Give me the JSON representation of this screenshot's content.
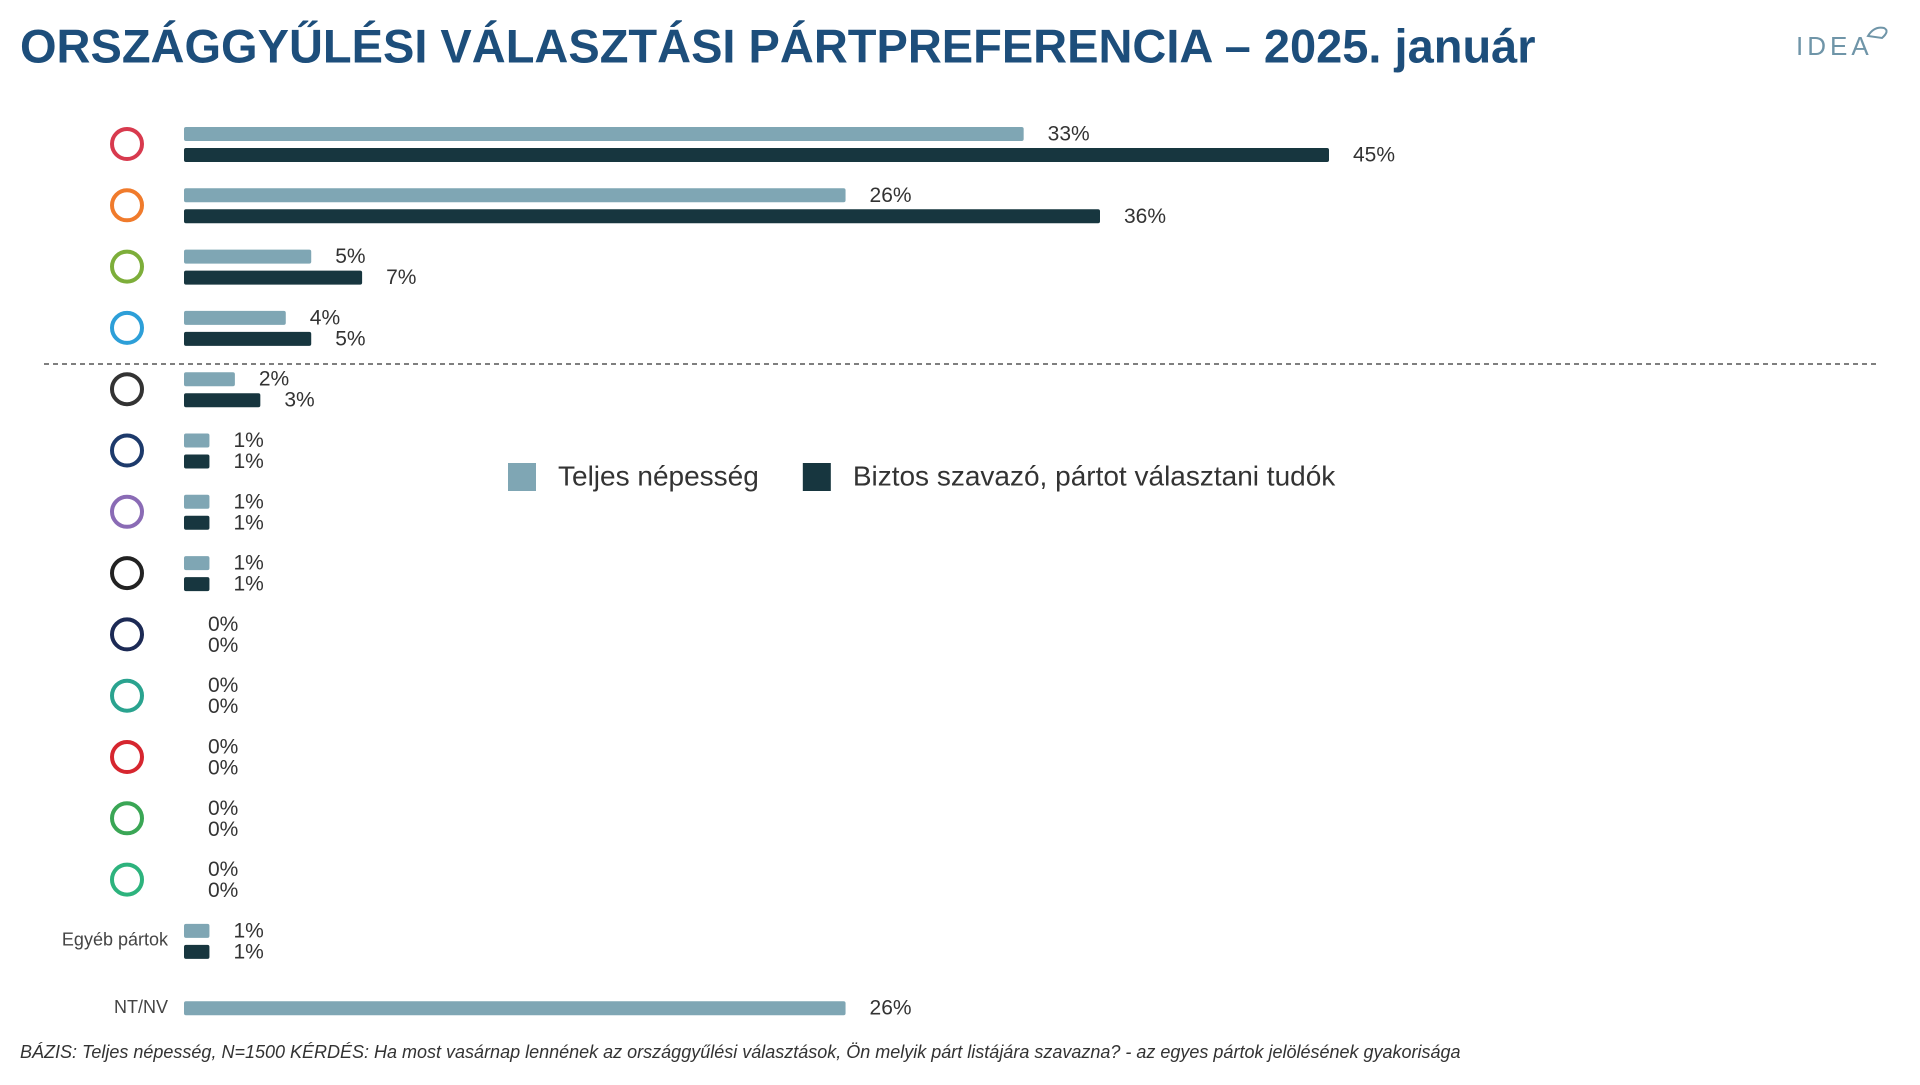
{
  "chart_data": {
    "type": "bar",
    "orientation": "horizontal",
    "title": "ORSZÁGGYŰLÉSI VÁLASZTÁSI PÁRTPREFERENCIA – 2025. január",
    "brand": "IDEA",
    "footnote": "BÁZIS: Teljes népesség, N=1500  KÉRDÉS:  Ha most vasárnap lennének az országgyűlési választások, Ön melyik párt listájára szavazna? - az egyes pártok jelölésének gyakorisága",
    "categories": [
      null,
      null,
      null,
      null,
      null,
      null,
      null,
      null,
      null,
      null,
      null,
      null,
      null,
      "Egyéb pártok",
      "NT/NV"
    ],
    "series": [
      {
        "name": "Teljes népesség",
        "color": "#7fa6b4",
        "values": [
          33,
          26,
          5,
          4,
          2,
          1,
          1,
          1,
          0,
          0,
          0,
          0,
          0,
          1,
          26
        ],
        "value_labels": [
          "33%",
          "26%",
          "5%",
          "4%",
          "2%",
          "1%",
          "1%",
          "1%",
          "0%",
          "0%",
          "0%",
          "0%",
          "0%",
          "1%",
          "26%"
        ]
      },
      {
        "name": "Biztos szavazó, pártot választani tudók",
        "color": "#17363f",
        "values": [
          45,
          36,
          7,
          5,
          3,
          1,
          1,
          1,
          0,
          0,
          0,
          0,
          0,
          1,
          null
        ],
        "value_labels": [
          "45%",
          "36%",
          "7%",
          "5%",
          "3%",
          "1%",
          "1%",
          "1%",
          "0%",
          "0%",
          "0%",
          "0%",
          "0%",
          "1%",
          null
        ]
      }
    ],
    "legend": "center"
  }
}
